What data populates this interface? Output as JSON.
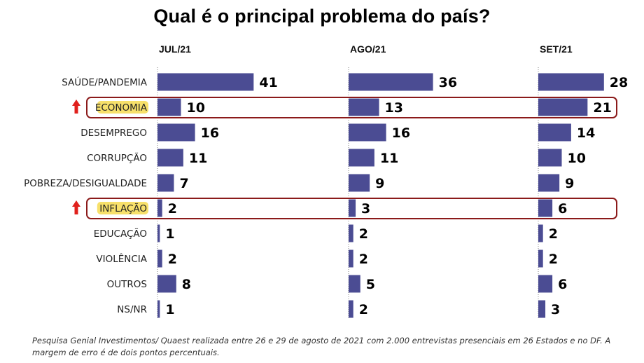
{
  "title": "Qual é o principal problema do país?",
  "note": "Pesquisa Genial Investimentos/ Quaest realizada entre 26 e 29 de agosto de 2021 com 2.000 entrevistas presenciais em 26 Estados e no DF. A margem de erro é de dois pontos percentuais.",
  "colors": {
    "bar": "#4b4c93",
    "highlight_box": "#8b1a1a",
    "label_highlight": "#f7e06b",
    "arrow": "#e0201c"
  },
  "chart_data": {
    "type": "bar",
    "orientation": "horizontal",
    "categories": [
      "SAÚDE/PANDEMIA",
      "ECONOMIA",
      "DESEMPREGO",
      "CORRUPÇÃO",
      "POBREZA/DESIGUALDADE",
      "INFLAÇÃO",
      "EDUCAÇÃO",
      "VIOLÊNCIA",
      "OUTROS",
      "NS/NR"
    ],
    "series": [
      {
        "name": "JUL/21",
        "values": [
          41,
          10,
          16,
          11,
          7,
          2,
          1,
          2,
          8,
          1
        ]
      },
      {
        "name": "AGO/21",
        "values": [
          36,
          13,
          16,
          11,
          9,
          3,
          2,
          2,
          5,
          2
        ]
      },
      {
        "name": "SET/21",
        "values": [
          28,
          21,
          14,
          10,
          9,
          6,
          2,
          2,
          6,
          3
        ]
      }
    ],
    "highlighted_categories": [
      "ECONOMIA",
      "INFLAÇÃO"
    ],
    "xlim": [
      0,
      50
    ]
  }
}
